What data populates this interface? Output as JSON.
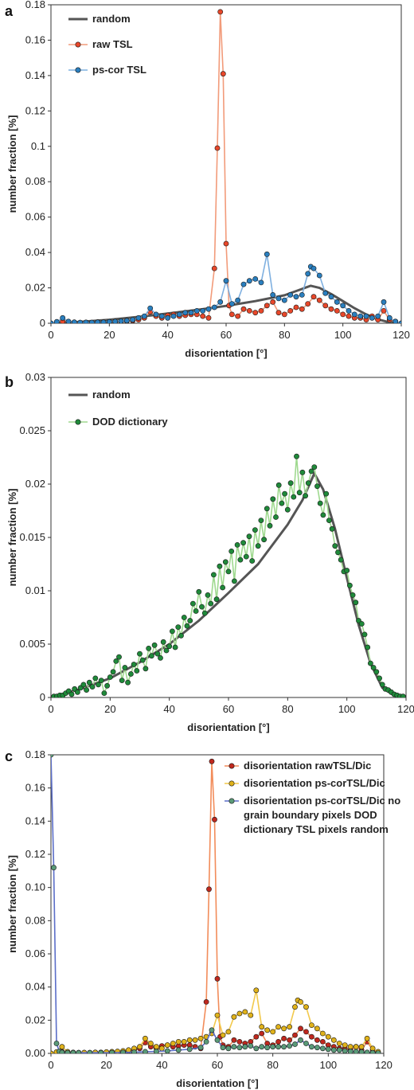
{
  "chart_data": [
    {
      "panel": "a",
      "type": "line",
      "xlabel": "disorientation [°]",
      "ylabel": "number fraction [%]",
      "xlim": [
        0,
        120
      ],
      "ylim": [
        0,
        0.18
      ],
      "x_ticks": [
        "0",
        "20",
        "40",
        "60",
        "80",
        "100",
        "120"
      ],
      "y_ticks": [
        "0",
        "0.02",
        "0.04",
        "0.06",
        "0.08",
        "0.1",
        "0.12",
        "0.14",
        "0.16",
        "0.18"
      ],
      "grid": false,
      "legend_position": "top-left",
      "series": [
        {
          "name": "random",
          "color": "#555555",
          "markers": false,
          "x": [
            0,
            10,
            20,
            30,
            40,
            50,
            60,
            70,
            80,
            89,
            92,
            96,
            100,
            104,
            108,
            112,
            116,
            118,
            120
          ],
          "y": [
            0,
            0.0008,
            0.002,
            0.0036,
            0.0055,
            0.0075,
            0.0098,
            0.0125,
            0.0158,
            0.0212,
            0.02,
            0.0165,
            0.0125,
            0.0085,
            0.005,
            0.0022,
            0.0005,
            0.0001,
            0
          ]
        },
        {
          "name": "raw TSL",
          "color": "#e8472a",
          "line_color": "#f29b7a",
          "markers": true,
          "x": [
            0,
            2,
            4,
            6,
            8,
            10,
            12,
            14,
            16,
            18,
            20,
            22,
            24,
            26,
            28,
            30,
            32,
            34,
            36,
            38,
            40,
            42,
            44,
            46,
            48,
            50,
            52,
            54,
            56,
            57,
            58,
            59,
            60,
            61,
            62,
            64,
            66,
            68,
            70,
            72,
            74,
            76,
            78,
            80,
            82,
            84,
            86,
            88,
            90,
            92,
            94,
            96,
            98,
            100,
            102,
            104,
            106,
            108,
            110,
            112,
            114,
            116,
            118,
            120
          ],
          "y": [
            0,
            0.0005,
            0.001,
            0.0008,
            0.0005,
            0.0004,
            0.0005,
            0.0004,
            0.0006,
            0.0005,
            0.0006,
            0.0008,
            0.001,
            0.0012,
            0.0015,
            0.002,
            0.003,
            0.0065,
            0.004,
            0.003,
            0.0045,
            0.005,
            0.004,
            0.0045,
            0.005,
            0.005,
            0.004,
            0.003,
            0.031,
            0.099,
            0.176,
            0.141,
            0.045,
            0.01,
            0.005,
            0.004,
            0.008,
            0.007,
            0.006,
            0.007,
            0.01,
            0.012,
            0.006,
            0.005,
            0.007,
            0.009,
            0.008,
            0.011,
            0.015,
            0.013,
            0.01,
            0.008,
            0.007,
            0.005,
            0.004,
            0.003,
            0.003,
            0.002,
            0.004,
            0.002,
            0.007,
            0.002,
            0.001,
            0
          ]
        },
        {
          "name": "ps-cor TSL",
          "color": "#2a7fbf",
          "line_color": "#7fb0e0",
          "markers": true,
          "x": [
            0,
            2,
            4,
            6,
            8,
            10,
            12,
            14,
            16,
            18,
            20,
            22,
            24,
            26,
            28,
            30,
            32,
            34,
            36,
            38,
            40,
            42,
            44,
            46,
            48,
            50,
            52,
            54,
            56,
            58,
            60,
            62,
            64,
            66,
            68,
            70,
            72,
            74,
            76,
            78,
            80,
            82,
            84,
            86,
            88,
            89,
            90,
            92,
            94,
            96,
            98,
            100,
            102,
            104,
            106,
            108,
            110,
            112,
            114,
            116,
            118,
            120
          ],
          "y": [
            0,
            0.0008,
            0.003,
            0.001,
            0.0006,
            0.0004,
            0.0005,
            0.0004,
            0.0006,
            0.0006,
            0.0008,
            0.001,
            0.0012,
            0.0015,
            0.002,
            0.003,
            0.004,
            0.0085,
            0.005,
            0.004,
            0.003,
            0.004,
            0.005,
            0.006,
            0.006,
            0.007,
            0.007,
            0.008,
            0.009,
            0.012,
            0.024,
            0.011,
            0.013,
            0.022,
            0.024,
            0.025,
            0.023,
            0.039,
            0.016,
            0.014,
            0.013,
            0.016,
            0.015,
            0.016,
            0.028,
            0.032,
            0.031,
            0.027,
            0.017,
            0.015,
            0.012,
            0.01,
            0.007,
            0.005,
            0.004,
            0.004,
            0.003,
            0.004,
            0.012,
            0.003,
            0.001,
            0
          ]
        }
      ]
    },
    {
      "panel": "b",
      "type": "line",
      "xlabel": "disorientation [°]",
      "ylabel": "number fraction [%]",
      "xlim": [
        0,
        120
      ],
      "ylim": [
        0,
        0.03
      ],
      "x_ticks": [
        "0",
        "20",
        "40",
        "60",
        "80",
        "100",
        "120"
      ],
      "y_ticks": [
        "0",
        "0.005",
        "0.01",
        "0.015",
        "0.02",
        "0.025",
        "0.03"
      ],
      "grid": false,
      "legend_position": "top-left",
      "series": [
        {
          "name": "random",
          "color": "#555555",
          "markers": false,
          "x": [
            0,
            10,
            20,
            30,
            40,
            50,
            60,
            70,
            80,
            85,
            89,
            92,
            96,
            100,
            104,
            108,
            112,
            116,
            118,
            120
          ],
          "y": [
            0,
            0.0008,
            0.0018,
            0.0033,
            0.005,
            0.0072,
            0.0098,
            0.0125,
            0.0162,
            0.0185,
            0.021,
            0.0195,
            0.0158,
            0.0112,
            0.0068,
            0.0032,
            0.0009,
            0.0002,
            0.0001,
            0
          ]
        },
        {
          "name": "DOD dictionary",
          "color": "#1f8a3a",
          "line_color": "#9fd98f",
          "markers": true,
          "x": [
            1,
            2,
            3,
            4,
            5,
            6,
            7,
            8,
            9,
            10,
            11,
            12,
            13,
            14,
            15,
            16,
            17,
            18,
            19,
            20,
            21,
            22,
            23,
            24,
            25,
            26,
            27,
            28,
            29,
            30,
            31,
            32,
            33,
            34,
            35,
            36,
            37,
            38,
            39,
            40,
            41,
            42,
            43,
            44,
            45,
            46,
            47,
            48,
            49,
            50,
            51,
            52,
            53,
            54,
            55,
            56,
            57,
            58,
            59,
            60,
            61,
            62,
            63,
            64,
            65,
            66,
            67,
            68,
            69,
            70,
            71,
            72,
            73,
            74,
            75,
            76,
            77,
            78,
            79,
            80,
            81,
            82,
            83,
            84,
            85,
            86,
            87,
            88,
            89,
            90,
            91,
            92,
            93,
            94,
            95,
            96,
            97,
            98,
            99,
            100,
            101,
            102,
            103,
            104,
            105,
            106,
            107,
            108,
            109,
            110,
            111,
            112,
            113,
            114,
            115,
            116,
            117,
            118,
            119
          ],
          "y": [
            0.0001,
            0.0001,
            0.0002,
            0.0002,
            0.0004,
            0.0006,
            0.0003,
            0.0008,
            0.0005,
            0.0009,
            0.0012,
            0.0007,
            0.0014,
            0.001,
            0.0018,
            0.0012,
            0.0016,
            0.0004,
            0.0011,
            0.0019,
            0.0024,
            0.0034,
            0.0038,
            0.0016,
            0.0028,
            0.0014,
            0.0022,
            0.0031,
            0.0025,
            0.0041,
            0.0035,
            0.0027,
            0.0046,
            0.0039,
            0.0049,
            0.0041,
            0.0037,
            0.0052,
            0.0044,
            0.0048,
            0.0062,
            0.0047,
            0.0066,
            0.0058,
            0.0075,
            0.0067,
            0.0072,
            0.0088,
            0.0081,
            0.0099,
            0.0085,
            0.0079,
            0.0096,
            0.0088,
            0.0115,
            0.0092,
            0.0123,
            0.0103,
            0.0127,
            0.0118,
            0.0137,
            0.0109,
            0.0143,
            0.0129,
            0.0145,
            0.0132,
            0.0151,
            0.0128,
            0.0157,
            0.0142,
            0.0166,
            0.0148,
            0.0177,
            0.0161,
            0.0186,
            0.0169,
            0.0199,
            0.0182,
            0.0191,
            0.0176,
            0.0201,
            0.0188,
            0.0226,
            0.0192,
            0.0211,
            0.0189,
            0.0201,
            0.0212,
            0.0216,
            0.0198,
            0.0182,
            0.0171,
            0.0191,
            0.0166,
            0.0158,
            0.0142,
            0.0136,
            0.0129,
            0.0118,
            0.0119,
            0.0105,
            0.0096,
            0.0089,
            0.0072,
            0.0069,
            0.0059,
            0.0047,
            0.0032,
            0.0028,
            0.0024,
            0.0018,
            0.0012,
            0.0008,
            0.0007,
            0.0005,
            0.0003,
            0.0002,
            0.0001,
            0.0001
          ]
        }
      ]
    },
    {
      "panel": "c",
      "type": "line",
      "xlabel": "disorientation [°]",
      "ylabel": "number fraction [%]",
      "xlim": [
        0,
        120
      ],
      "ylim": [
        0,
        0.18
      ],
      "x_ticks": [
        "0",
        "20",
        "40",
        "60",
        "80",
        "100",
        "120"
      ],
      "y_ticks": [
        "0.00",
        "0.02",
        "0.04",
        "0.06",
        "0.08",
        "0.10",
        "0.12",
        "0.14",
        "0.16",
        "0.18"
      ],
      "grid": false,
      "legend_position": "top-right",
      "series": [
        {
          "name": "disorientation rawTSL/Dic",
          "color": "#c0281e",
          "line_color": "#f28c5a",
          "markers": true,
          "x": [
            0,
            2,
            4,
            6,
            8,
            10,
            12,
            14,
            16,
            18,
            20,
            22,
            24,
            26,
            28,
            30,
            32,
            34,
            36,
            38,
            40,
            42,
            44,
            46,
            48,
            50,
            52,
            54,
            56,
            57,
            58,
            59,
            60,
            61,
            62,
            64,
            66,
            68,
            70,
            72,
            74,
            76,
            78,
            80,
            82,
            84,
            86,
            88,
            90,
            92,
            94,
            96,
            98,
            100,
            102,
            104,
            106,
            108,
            110,
            112,
            114,
            116,
            118
          ],
          "y": [
            0,
            0.0005,
            0.001,
            0.0008,
            0.0005,
            0.0004,
            0.0005,
            0.0004,
            0.0006,
            0.0005,
            0.0006,
            0.0008,
            0.001,
            0.0012,
            0.0015,
            0.002,
            0.003,
            0.0065,
            0.004,
            0.003,
            0.0045,
            0.005,
            0.004,
            0.0045,
            0.005,
            0.005,
            0.004,
            0.003,
            0.031,
            0.099,
            0.176,
            0.141,
            0.045,
            0.01,
            0.005,
            0.004,
            0.008,
            0.007,
            0.006,
            0.007,
            0.01,
            0.012,
            0.006,
            0.005,
            0.007,
            0.009,
            0.008,
            0.011,
            0.015,
            0.013,
            0.01,
            0.008,
            0.007,
            0.005,
            0.004,
            0.003,
            0.003,
            0.002,
            0.004,
            0.002,
            0.007,
            0.002,
            0
          ]
        },
        {
          "name": "disorientation ps-corTSL/Dic",
          "color": "#e0b21a",
          "line_color": "#f2c94c",
          "markers": true,
          "x": [
            0,
            2,
            4,
            6,
            8,
            10,
            12,
            14,
            16,
            18,
            20,
            22,
            24,
            26,
            28,
            30,
            32,
            34,
            36,
            38,
            40,
            42,
            44,
            46,
            48,
            50,
            52,
            54,
            56,
            58,
            60,
            62,
            64,
            66,
            68,
            70,
            72,
            74,
            76,
            78,
            80,
            82,
            84,
            86,
            88,
            89,
            90,
            92,
            94,
            96,
            98,
            100,
            102,
            104,
            106,
            108,
            110,
            112,
            114,
            116,
            118
          ],
          "y": [
            0,
            0.0008,
            0.004,
            0.001,
            0.0006,
            0.0004,
            0.0005,
            0.0004,
            0.0006,
            0.0006,
            0.0008,
            0.001,
            0.0012,
            0.0015,
            0.002,
            0.003,
            0.004,
            0.009,
            0.006,
            0.004,
            0.003,
            0.005,
            0.006,
            0.007,
            0.007,
            0.008,
            0.008,
            0.009,
            0.01,
            0.012,
            0.023,
            0.011,
            0.013,
            0.022,
            0.024,
            0.025,
            0.023,
            0.038,
            0.016,
            0.014,
            0.013,
            0.016,
            0.015,
            0.016,
            0.028,
            0.032,
            0.031,
            0.028,
            0.017,
            0.015,
            0.012,
            0.01,
            0.008,
            0.006,
            0.005,
            0.004,
            0.004,
            0.004,
            0.009,
            0.003,
            0.001
          ]
        },
        {
          "name": "disorientation ps-corTSL/Dic no grain boundary pixels DOD dictionary TSL pixels random",
          "color": "#5a9a78",
          "line_color": "#5b6ec8",
          "markers": true,
          "x": [
            0,
            1,
            2,
            3,
            4,
            6,
            8,
            10,
            14,
            18,
            22,
            26,
            30,
            34,
            38,
            42,
            46,
            50,
            54,
            56,
            58,
            60,
            62,
            64,
            66,
            68,
            70,
            72,
            74,
            76,
            78,
            80,
            82,
            84,
            86,
            88,
            90,
            92,
            94,
            96,
            98,
            100,
            102,
            104,
            106,
            108,
            110,
            112,
            114,
            116,
            118
          ],
          "y": [
            0.18,
            0.112,
            0.006,
            0.0012,
            0.0006,
            0.0004,
            0.0004,
            0.0004,
            0.0004,
            0.0004,
            0.0005,
            0.0006,
            0.0007,
            0.001,
            0.0012,
            0.0015,
            0.002,
            0.0025,
            0.0035,
            0.007,
            0.014,
            0.008,
            0.0035,
            0.003,
            0.004,
            0.0035,
            0.004,
            0.0045,
            0.003,
            0.004,
            0.0035,
            0.004,
            0.004,
            0.004,
            0.0045,
            0.0055,
            0.008,
            0.006,
            0.004,
            0.0035,
            0.003,
            0.0025,
            0.002,
            0.002,
            0.0015,
            0.0012,
            0.001,
            0.0008,
            0.0006,
            0.0004,
            0.0002
          ]
        }
      ]
    }
  ]
}
